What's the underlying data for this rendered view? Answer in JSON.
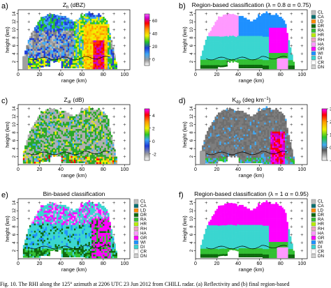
{
  "caption": "Fig. 10. The RHI along the 125° azimuth at 2206 UTC 23 Jun 2012 from CHILL radar. (a) Reflectivity and (b) final region-based",
  "category_legend": [
    "CL",
    "CA",
    "LD",
    "DR",
    "RA",
    "HR",
    "RH",
    "HA",
    "GR",
    "WI",
    "DI",
    "CR",
    "DN"
  ],
  "category_colors": [
    "#bdbdbd",
    "#006f6f",
    "#ff8c00",
    "#0d6a0d",
    "#33c033",
    "#b8ee00",
    "#f3a0c4",
    "#ff99ff",
    "#ff00ff",
    "#1e90ff",
    "#3ad6d0",
    "#ffffff",
    "#cfcfcf"
  ],
  "chart_data": [
    {
      "type": "heatmap",
      "panel": "a)",
      "title": "Z_h (dBZ)",
      "xlabel": "range (km)",
      "ylabel": "height (km)",
      "xlim": [
        0,
        105
      ],
      "ylim": [
        0,
        15
      ],
      "xticks": [
        "0",
        "20",
        "40",
        "60",
        "80",
        "100"
      ],
      "yticks": [
        "2",
        "4",
        "6",
        "8",
        "10",
        "12",
        "14"
      ],
      "colorbar": {
        "ticks": [
          "0",
          "20",
          "40",
          "60"
        ],
        "range": [
          -10,
          70
        ]
      },
      "grid": false
    },
    {
      "type": "heatmap",
      "panel": "b)",
      "title": "Region-based classification (λ = 0.8  α = 0.75)",
      "xlabel": "range (km)",
      "ylabel": "height (km)",
      "xlim": [
        0,
        105
      ],
      "ylim": [
        0,
        15
      ],
      "xticks": [
        "0",
        "20",
        "40",
        "60",
        "80",
        "100"
      ],
      "yticks": [
        "2",
        "4",
        "6",
        "8",
        "10",
        "12",
        "14"
      ],
      "legend": "right"
    },
    {
      "type": "heatmap",
      "panel": "c)",
      "title": "Z_dr (dB)",
      "xlabel": "range (km)",
      "ylabel": "height (km)",
      "xlim": [
        0,
        105
      ],
      "ylim": [
        0,
        15
      ],
      "xticks": [
        "0",
        "20",
        "40",
        "60",
        "80",
        "100"
      ],
      "yticks": [
        "2",
        "4",
        "6",
        "8",
        "10",
        "12",
        "14"
      ],
      "colorbar": {
        "ticks": [
          "-2",
          "0",
          "2",
          "4"
        ],
        "range": [
          -3,
          5
        ]
      }
    },
    {
      "type": "heatmap",
      "panel": "d)",
      "title": "K_dp (deg km⁻¹)",
      "xlabel": "range (km)",
      "ylabel": "height (km)",
      "xlim": [
        0,
        105
      ],
      "ylim": [
        0,
        15
      ],
      "xticks": [
        "0",
        "20",
        "40",
        "60",
        "80",
        "100"
      ],
      "yticks": [
        "2",
        "4",
        "6",
        "8",
        "10",
        "12",
        "14"
      ],
      "colorbar": {
        "ticks": [
          "-1",
          "0",
          "1",
          "2",
          "3"
        ],
        "range": [
          -1,
          3
        ]
      }
    },
    {
      "type": "heatmap",
      "panel": "e)",
      "title": "Bin-based classification",
      "xlabel": "range (km)",
      "ylabel": "height (km)",
      "xlim": [
        0,
        105
      ],
      "ylim": [
        0,
        15
      ],
      "xticks": [
        "0",
        "20",
        "40",
        "60",
        "80",
        "100"
      ],
      "yticks": [
        "2",
        "4",
        "6",
        "8",
        "10",
        "12",
        "14"
      ],
      "legend": "right"
    },
    {
      "type": "heatmap",
      "panel": "f)",
      "title": "Region-based classification (λ = 1  α = 0.95)",
      "xlabel": "range (km)",
      "ylabel": "height (km)",
      "xlim": [
        0,
        105
      ],
      "ylim": [
        0,
        15
      ],
      "xticks": [
        "0",
        "20",
        "40",
        "60",
        "80",
        "100"
      ],
      "yticks": [
        "2",
        "4",
        "6",
        "8",
        "10",
        "12",
        "14"
      ],
      "legend": "right"
    }
  ]
}
